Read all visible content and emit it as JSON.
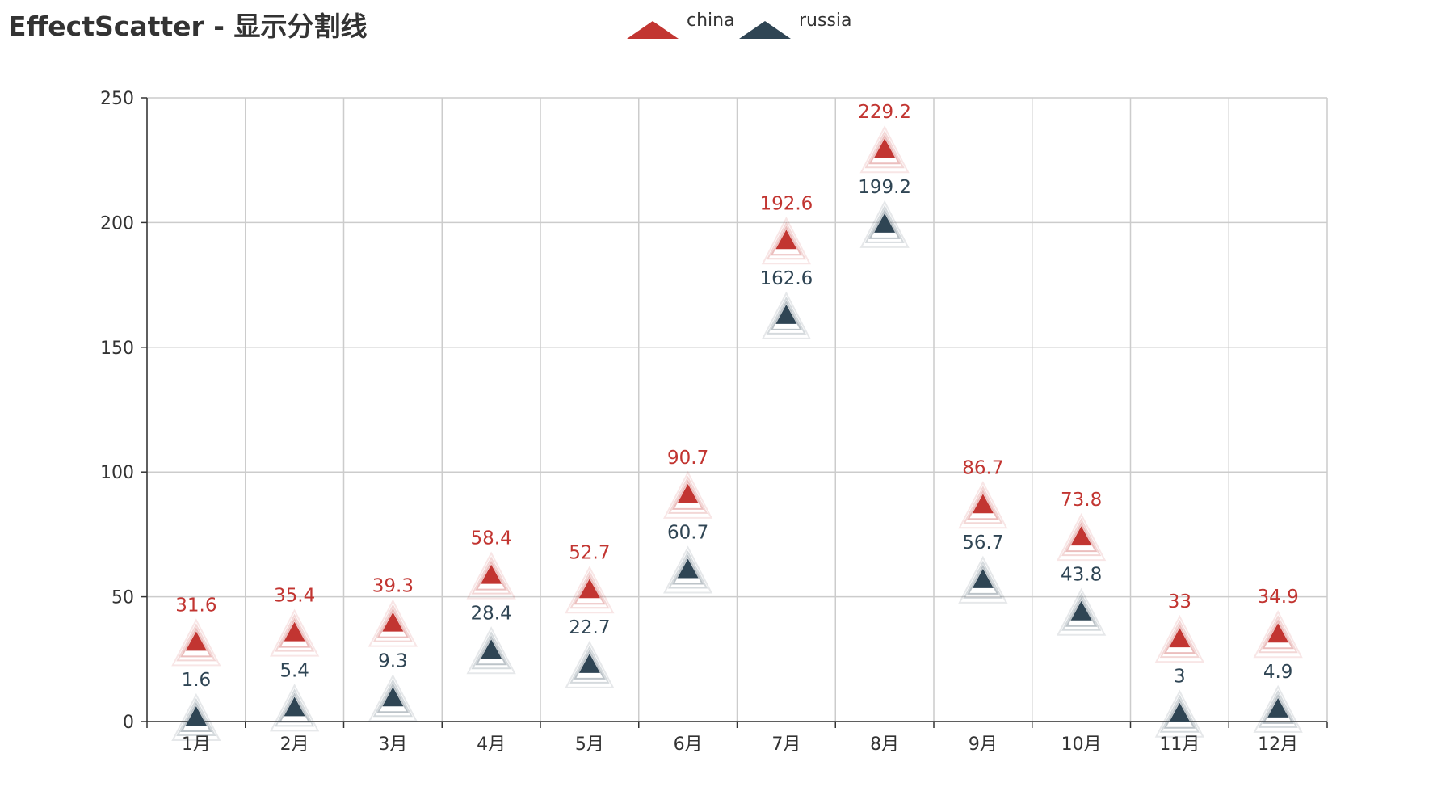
{
  "title": "EffectScatter - 显示分割线",
  "chart_data": {
    "type": "scatter",
    "title": "EffectScatter - 显示分割线",
    "xlabel": "",
    "ylabel": "",
    "categories": [
      "1月",
      "2月",
      "3月",
      "4月",
      "5月",
      "6月",
      "7月",
      "8月",
      "9月",
      "10月",
      "11月",
      "12月"
    ],
    "ylim": [
      0,
      250
    ],
    "yticks": [
      0,
      50,
      100,
      150,
      200,
      250
    ],
    "grid": {
      "x": true,
      "y": true
    },
    "legend_position": "top-center",
    "marker": "triangle",
    "series": [
      {
        "name": "china",
        "color": "#c23531",
        "values": [
          31.6,
          35.4,
          39.3,
          58.4,
          52.7,
          90.7,
          192.6,
          229.2,
          86.7,
          73.8,
          33,
          34.9
        ]
      },
      {
        "name": "russia",
        "color": "#2f4554",
        "values": [
          1.6,
          5.4,
          9.3,
          28.4,
          22.7,
          60.7,
          162.6,
          199.2,
          56.7,
          43.8,
          3,
          4.9
        ]
      }
    ]
  }
}
